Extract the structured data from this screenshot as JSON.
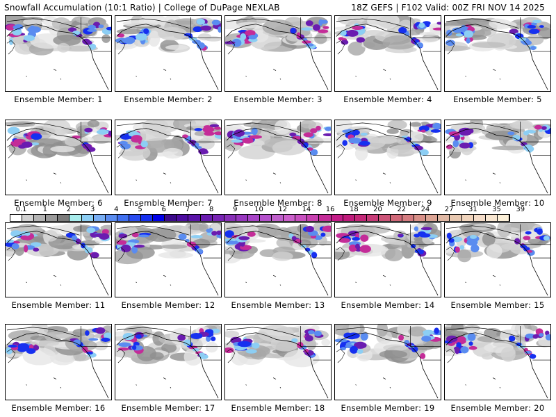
{
  "header": {
    "title_left": "Snowfall Accumulation (10:1 Ratio) | College of DuPage NEXLAB",
    "title_right": "18Z GEFS | F102 Valid: 00Z FRI NOV 14 2025"
  },
  "panels": [
    {
      "label": "Ensemble Member: 1"
    },
    {
      "label": "Ensemble Member: 2"
    },
    {
      "label": "Ensemble Member: 3"
    },
    {
      "label": "Ensemble Member: 4"
    },
    {
      "label": "Ensemble Member: 5"
    },
    {
      "label": "Ensemble Member: 6"
    },
    {
      "label": "Ensemble Member: 7"
    },
    {
      "label": "Ensemble Member: 8"
    },
    {
      "label": "Ensemble Member: 9"
    },
    {
      "label": "Ensemble Member: 10"
    },
    {
      "label": "Ensemble Member: 11"
    },
    {
      "label": "Ensemble Member: 12"
    },
    {
      "label": "Ensemble Member: 13"
    },
    {
      "label": "Ensemble Member: 14"
    },
    {
      "label": "Ensemble Member: 15"
    },
    {
      "label": "Ensemble Member: 16"
    },
    {
      "label": "Ensemble Member: 17"
    },
    {
      "label": "Ensemble Member: 18"
    },
    {
      "label": "Ensemble Member: 19"
    },
    {
      "label": "Ensemble Member: 20"
    }
  ],
  "colorbar": {
    "tick_labels": [
      "0.1",
      "1",
      "2",
      "3",
      "4",
      "5",
      "6",
      "7",
      "8",
      "9",
      "10",
      "12",
      "14",
      "16",
      "18",
      "20",
      "22",
      "24",
      "27",
      "31",
      "35",
      "39"
    ],
    "colors": [
      "#ffffff",
      "#d0d0d0",
      "#b4b4b4",
      "#9a9a9a",
      "#7c7c7c",
      "#a8ecec",
      "#8ccef4",
      "#78aef4",
      "#5a8cf0",
      "#4070f0",
      "#2a4cf0",
      "#1630f0",
      "#0000e8",
      "#3c0a8c",
      "#4c0ca0",
      "#5a14a8",
      "#6a1cb0",
      "#7824b4",
      "#8830b8",
      "#9838c0",
      "#a844c8",
      "#b450cc",
      "#c060cc",
      "#cc60cc",
      "#c850c0",
      "#c840b0",
      "#c42c98",
      "#c41c88",
      "#c01c7c",
      "#c42878",
      "#c83c78",
      "#cc5478",
      "#d06878",
      "#d47c80",
      "#d89088",
      "#dca494",
      "#e0b8a4",
      "#e8c8b0",
      "#f0d4bc",
      "#f4dcc8",
      "#f8e6d0",
      "#fcf0d8"
    ]
  }
}
